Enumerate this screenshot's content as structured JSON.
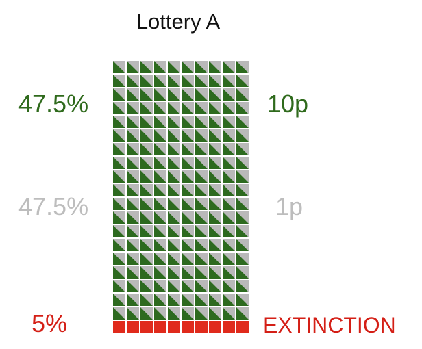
{
  "title": "Lottery A",
  "colors": {
    "dark_green": "#2d6a1f",
    "gray": "#b9b9b9",
    "red": "#e02a1c",
    "label_green": "#2f6a1c",
    "label_gray": "#bdbdbd",
    "label_red": "#d41f16"
  },
  "grid": {
    "columns": 10,
    "green_gray_rows": 19,
    "red_rows": 1,
    "cell_style_top": "split-triangle (green lower-left, gray upper-right)",
    "cell_style_bottom": "solid red square"
  },
  "outcomes": [
    {
      "probability": "47.5%",
      "outcome": "10p",
      "color": "label_green"
    },
    {
      "probability": "47.5%",
      "outcome": "1p",
      "color": "label_gray"
    },
    {
      "probability": "5%",
      "outcome": "EXTINCTION",
      "color": "label_red"
    }
  ]
}
